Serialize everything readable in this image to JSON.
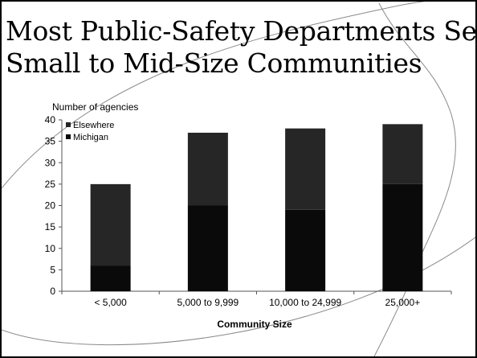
{
  "slide": {
    "title_line1": "Most Public-Safety Departments Serve",
    "title_line2": "Small to Mid-Size Communities"
  },
  "colors": {
    "michigan": "#0a0a0a",
    "elsewhere": "#262626",
    "axis": "#555555",
    "text": "#000000"
  },
  "chart_data": {
    "type": "bar",
    "stacked": true,
    "title": "",
    "ylabel": "Number of agencies",
    "xlabel": "Community Size",
    "categories": [
      "< 5,000",
      "5,000 to 9,999",
      "10,000 to 24,999",
      "25,000+"
    ],
    "series": [
      {
        "name": "Michigan",
        "values": [
          6,
          20,
          19,
          25
        ]
      },
      {
        "name": "Elsewhere",
        "values": [
          19,
          17,
          19,
          14
        ]
      }
    ],
    "ylim": [
      0,
      40
    ],
    "yticks": [
      0,
      5,
      10,
      15,
      20,
      25,
      30,
      35,
      40
    ],
    "legend_position": "top-left",
    "legend_order": [
      "Elsewhere",
      "Michigan"
    ],
    "grid": false
  }
}
